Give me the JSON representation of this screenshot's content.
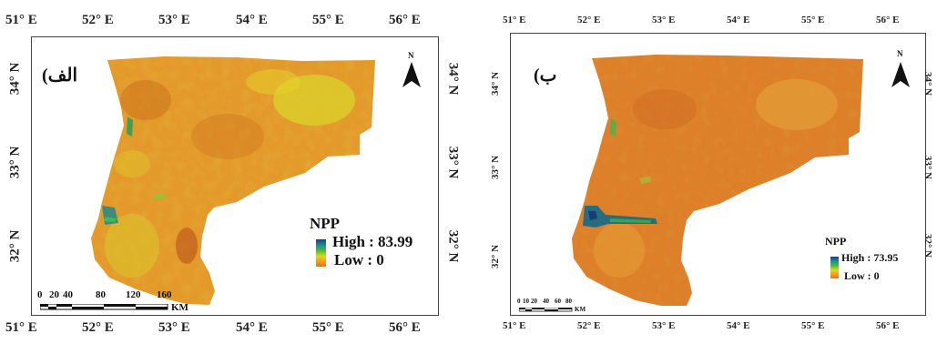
{
  "panel_a": {
    "label": "(الف",
    "top_ticks": [
      "51° E",
      "52° E",
      "53° E",
      "54° E",
      "55° E",
      "56° E"
    ],
    "bottom_ticks": [
      "51° E",
      "52° E",
      "53° E",
      "54° E",
      "55° E",
      "56° E"
    ],
    "left_ticks": [
      "34° N",
      "33° N",
      "32° N"
    ],
    "right_ticks": [
      "34° N",
      "33° N",
      "32° N"
    ],
    "north_label": "N",
    "legend": {
      "title": "NPP",
      "high": "High : 83.99",
      "low": "Low : 0"
    },
    "scalebar": {
      "ticks": [
        "0",
        "20",
        "40",
        "80",
        "120",
        "160"
      ],
      "unit": "KM"
    }
  },
  "panel_b": {
    "label": "(ب",
    "top_ticks": [
      "51° E",
      "52° E",
      "53° E",
      "54° E",
      "55° E",
      "56° E"
    ],
    "bottom_ticks": [
      "51° E",
      "52° E",
      "53° E",
      "54° E",
      "55° E",
      "56° E"
    ],
    "left_ticks": [
      "34° N",
      "33° N",
      "32° N"
    ],
    "right_ticks": [
      "34° N",
      "33° N",
      "32° N"
    ],
    "north_label": "N",
    "legend": {
      "title": "NPP",
      "high": "High : 73.95",
      "low": "Low : 0"
    },
    "scalebar": {
      "ticks": [
        "0",
        "10",
        "20",
        "40",
        "60",
        "80"
      ],
      "unit": "KM"
    }
  },
  "colors": {
    "npp_high": "#1a3f8f",
    "npp_mid_high": "#4fbf3a",
    "npp_mid": "#e0d820",
    "npp_low": "#e8741a",
    "region_base_a": "#e49a2a",
    "region_base_b": "#de7f2a"
  }
}
